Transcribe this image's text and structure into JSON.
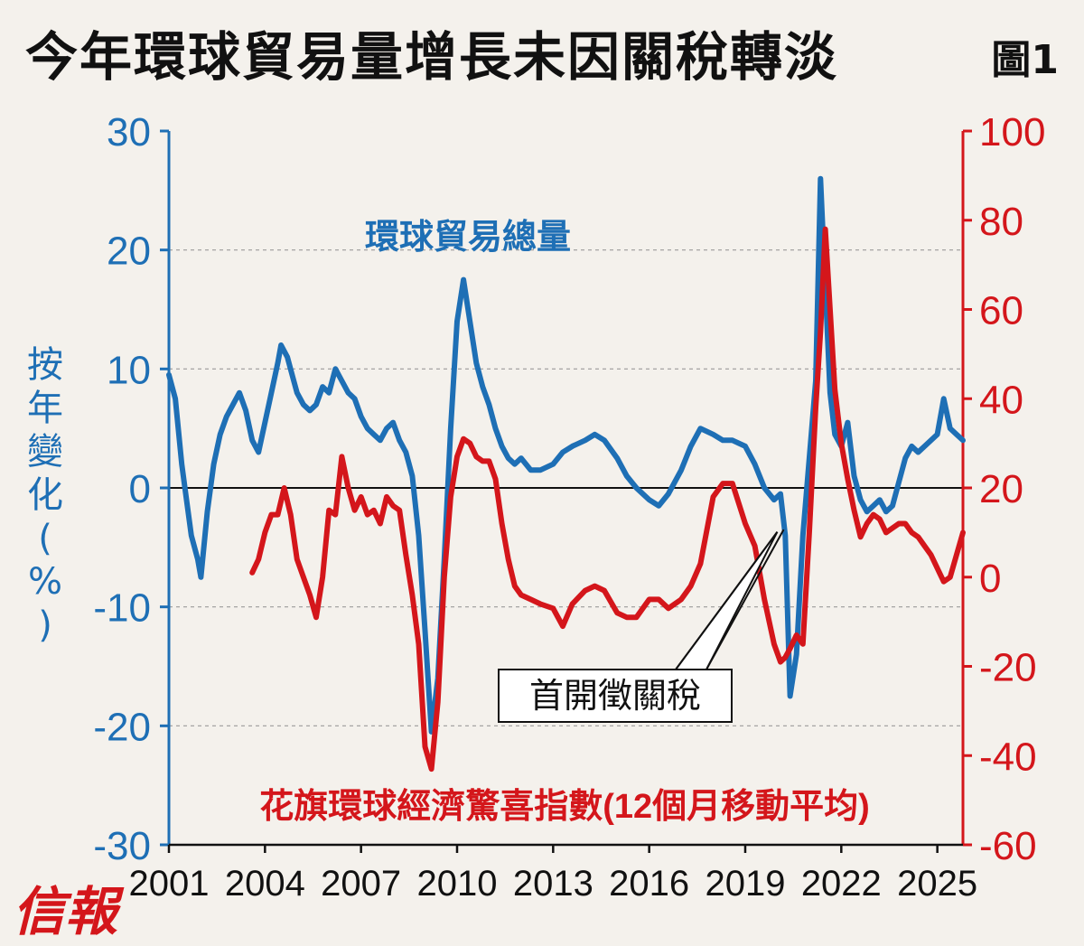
{
  "title": "今年環球貿易量增長未因關稅轉淡",
  "figure_label": "圖1",
  "brand": "信報",
  "colors": {
    "left": "#1e6fb5",
    "right": "#d4161b",
    "text": "#111111",
    "grid": "#9a9a9a"
  },
  "chart_data": {
    "type": "line",
    "title": "今年環球貿易量增長未因關稅轉淡",
    "ylabel": "按年變化(%)",
    "ylabel_chars": [
      "按",
      "年",
      "變",
      "化",
      "(",
      "%",
      ")"
    ],
    "grid": "dashed horizontal",
    "x_range": [
      2001,
      2025.8
    ],
    "x_ticks": [
      2001,
      2004,
      2007,
      2010,
      2013,
      2016,
      2019,
      2022,
      2025
    ],
    "y_left": {
      "range": [
        -30,
        30
      ],
      "ticks": [
        -30,
        -20,
        -10,
        0,
        10,
        20,
        30
      ]
    },
    "y_right": {
      "range": [
        -60,
        100
      ],
      "ticks": [
        -60,
        -40,
        -20,
        0,
        20,
        40,
        60,
        80,
        100
      ]
    },
    "annotation": {
      "text": "首開徵關稅",
      "points_to": [
        2020.0,
        2020.2
      ]
    },
    "series": [
      {
        "name": "環球貿易總量",
        "axis": "left",
        "x": [
          2001.0,
          2001.2,
          2001.4,
          2001.5,
          2001.7,
          2001.9,
          2002.0,
          2002.2,
          2002.4,
          2002.6,
          2002.8,
          2003.0,
          2003.2,
          2003.4,
          2003.6,
          2003.8,
          2004.0,
          2004.2,
          2004.4,
          2004.5,
          2004.7,
          2004.9,
          2005.0,
          2005.2,
          2005.4,
          2005.6,
          2005.8,
          2006.0,
          2006.2,
          2006.4,
          2006.6,
          2006.8,
          2007.0,
          2007.2,
          2007.4,
          2007.6,
          2007.8,
          2008.0,
          2008.2,
          2008.4,
          2008.6,
          2008.8,
          2009.0,
          2009.2,
          2009.4,
          2009.6,
          2009.8,
          2010.0,
          2010.2,
          2010.4,
          2010.6,
          2010.8,
          2011.0,
          2011.2,
          2011.4,
          2011.6,
          2011.8,
          2012.0,
          2012.3,
          2012.6,
          2013.0,
          2013.3,
          2013.6,
          2014.0,
          2014.3,
          2014.6,
          2015.0,
          2015.3,
          2015.6,
          2016.0,
          2016.3,
          2016.6,
          2017.0,
          2017.3,
          2017.6,
          2018.0,
          2018.3,
          2018.6,
          2019.0,
          2019.3,
          2019.6,
          2019.9,
          2020.1,
          2020.25,
          2020.4,
          2020.6,
          2020.8,
          2021.0,
          2021.2,
          2021.35,
          2021.5,
          2021.65,
          2021.8,
          2022.0,
          2022.2,
          2022.4,
          2022.6,
          2022.8,
          2023.0,
          2023.2,
          2023.4,
          2023.6,
          2023.8,
          2024.0,
          2024.2,
          2024.4,
          2024.6,
          2024.8,
          2025.0,
          2025.2,
          2025.4,
          2025.6,
          2025.8
        ],
        "values": [
          9.5,
          7.5,
          2.0,
          0.0,
          -4.0,
          -6.0,
          -7.5,
          -2.0,
          2.0,
          4.5,
          6.0,
          7.0,
          8.0,
          6.5,
          4.0,
          3.0,
          5.5,
          8.0,
          10.5,
          12.0,
          11.0,
          9.0,
          8.0,
          7.0,
          6.5,
          7.0,
          8.5,
          8.0,
          10.0,
          9.0,
          8.0,
          7.5,
          6.0,
          5.0,
          4.5,
          4.0,
          5.0,
          5.5,
          4.0,
          3.0,
          1.0,
          -4.0,
          -12.0,
          -20.5,
          -16.0,
          -6.0,
          5.0,
          14.0,
          17.5,
          14.0,
          10.5,
          8.5,
          7.0,
          5.0,
          3.5,
          2.5,
          2.0,
          2.5,
          1.5,
          1.5,
          2.0,
          3.0,
          3.5,
          4.0,
          4.5,
          4.0,
          2.5,
          1.0,
          0.0,
          -1.0,
          -1.5,
          -0.5,
          1.5,
          3.5,
          5.0,
          4.5,
          4.0,
          4.0,
          3.5,
          2.0,
          0.0,
          -1.0,
          -0.5,
          -4.0,
          -17.5,
          -14.0,
          -4.0,
          2.5,
          9.0,
          26.0,
          17.0,
          8.0,
          4.5,
          3.5,
          5.5,
          1.0,
          -1.0,
          -2.0,
          -1.5,
          -1.0,
          -2.0,
          -1.5,
          0.5,
          2.5,
          3.5,
          3.0,
          3.5,
          4.0,
          4.5,
          7.5,
          5.0,
          4.5,
          4.0
        ]
      },
      {
        "name": "花旗環球經濟驚喜指數(12個月移動平均)",
        "axis": "right",
        "x": [
          2003.6,
          2003.8,
          2004.0,
          2004.2,
          2004.4,
          2004.6,
          2004.8,
          2005.0,
          2005.2,
          2005.4,
          2005.6,
          2005.8,
          2006.0,
          2006.2,
          2006.4,
          2006.6,
          2006.8,
          2007.0,
          2007.2,
          2007.4,
          2007.6,
          2007.8,
          2008.0,
          2008.2,
          2008.4,
          2008.6,
          2008.8,
          2009.0,
          2009.2,
          2009.4,
          2009.6,
          2009.8,
          2010.0,
          2010.2,
          2010.4,
          2010.6,
          2010.8,
          2011.0,
          2011.2,
          2011.4,
          2011.6,
          2011.8,
          2012.0,
          2012.3,
          2012.6,
          2013.0,
          2013.3,
          2013.6,
          2014.0,
          2014.3,
          2014.6,
          2015.0,
          2015.3,
          2015.6,
          2016.0,
          2016.3,
          2016.6,
          2017.0,
          2017.3,
          2017.6,
          2018.0,
          2018.3,
          2018.6,
          2019.0,
          2019.3,
          2019.6,
          2019.9,
          2020.1,
          2020.25,
          2020.4,
          2020.6,
          2020.8,
          2021.0,
          2021.2,
          2021.35,
          2021.5,
          2021.65,
          2021.8,
          2022.0,
          2022.2,
          2022.4,
          2022.6,
          2022.8,
          2023.0,
          2023.2,
          2023.4,
          2023.6,
          2023.8,
          2024.0,
          2024.2,
          2024.4,
          2024.6,
          2024.8,
          2025.0,
          2025.2,
          2025.4,
          2025.6,
          2025.8
        ],
        "values": [
          1.0,
          4.0,
          10.0,
          14.0,
          14.0,
          20.0,
          14.0,
          4.0,
          0.0,
          -4.0,
          -9.0,
          0.0,
          15.0,
          14.0,
          27.0,
          20.0,
          15.0,
          18.0,
          14.0,
          15.0,
          12.0,
          18.0,
          16.0,
          15.0,
          5.0,
          -4.0,
          -15.0,
          -38.0,
          -43.0,
          -28.0,
          0.0,
          18.0,
          27.0,
          31.0,
          30.0,
          27.0,
          26.0,
          26.0,
          22.0,
          12.0,
          4.0,
          -2.0,
          -4.0,
          -5.0,
          -6.0,
          -7.0,
          -11.0,
          -6.0,
          -3.0,
          -2.0,
          -3.0,
          -8.0,
          -9.0,
          -9.0,
          -5.0,
          -5.0,
          -7.0,
          -5.0,
          -2.0,
          3.0,
          18.0,
          21.0,
          21.0,
          12.0,
          7.0,
          -5.0,
          -15.0,
          -19.0,
          -18.0,
          -16.0,
          -13.0,
          -15.0,
          10.0,
          38.0,
          55.0,
          78.0,
          60.0,
          42.0,
          30.0,
          22.0,
          15.0,
          9.0,
          12.0,
          14.0,
          13.0,
          10.0,
          11.0,
          12.0,
          12.0,
          10.0,
          9.0,
          7.0,
          5.0,
          2.0,
          -1.0,
          0.0,
          5.0,
          10.0
        ]
      }
    ],
    "series_labels": {
      "left": "環球貿易總量",
      "right": "花旗環球經濟驚喜指數(12個月移動平均)"
    }
  }
}
